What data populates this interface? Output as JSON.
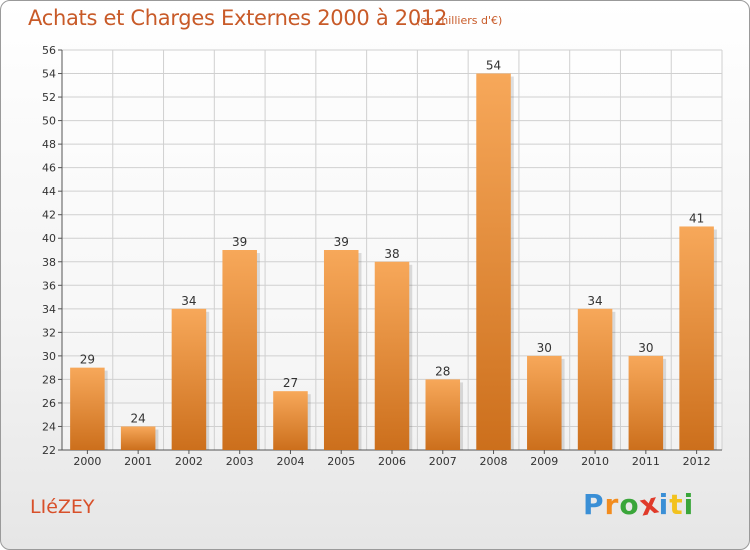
{
  "title": "Achats et Charges Externes 2000 à 2012",
  "subtitle": "(en milliers d'€)",
  "commune": "LIéZEY",
  "logo": {
    "letters": [
      "P",
      "r",
      "o",
      "x",
      "i",
      "t",
      "i"
    ],
    "colors": [
      "#3a8fd6",
      "#f28c1e",
      "#3aa63a",
      "#e03a2a",
      "#3a8fd6",
      "#f2c21e",
      "#3aa63a"
    ]
  },
  "colors": {
    "title": "#c85a28",
    "bar_top": "#f7a85a",
    "bar_bottom": "#cc6f1c",
    "grid": "#d0d0d0"
  },
  "chart_data": {
    "type": "bar",
    "title": "Achats et Charges Externes 2000 à 2012",
    "subtitle": "(en milliers d'€)",
    "categories": [
      "2000",
      "2001",
      "2002",
      "2003",
      "2004",
      "2005",
      "2006",
      "2007",
      "2008",
      "2009",
      "2010",
      "2011",
      "2012"
    ],
    "values": [
      29,
      24,
      34,
      39,
      27,
      39,
      38,
      28,
      54,
      30,
      34,
      30,
      41
    ],
    "ylim": [
      22,
      56
    ],
    "yticks": [
      22,
      24,
      26,
      28,
      30,
      32,
      34,
      36,
      38,
      40,
      42,
      44,
      46,
      48,
      50,
      52,
      54,
      56
    ],
    "grid": true,
    "data_labels": true
  }
}
